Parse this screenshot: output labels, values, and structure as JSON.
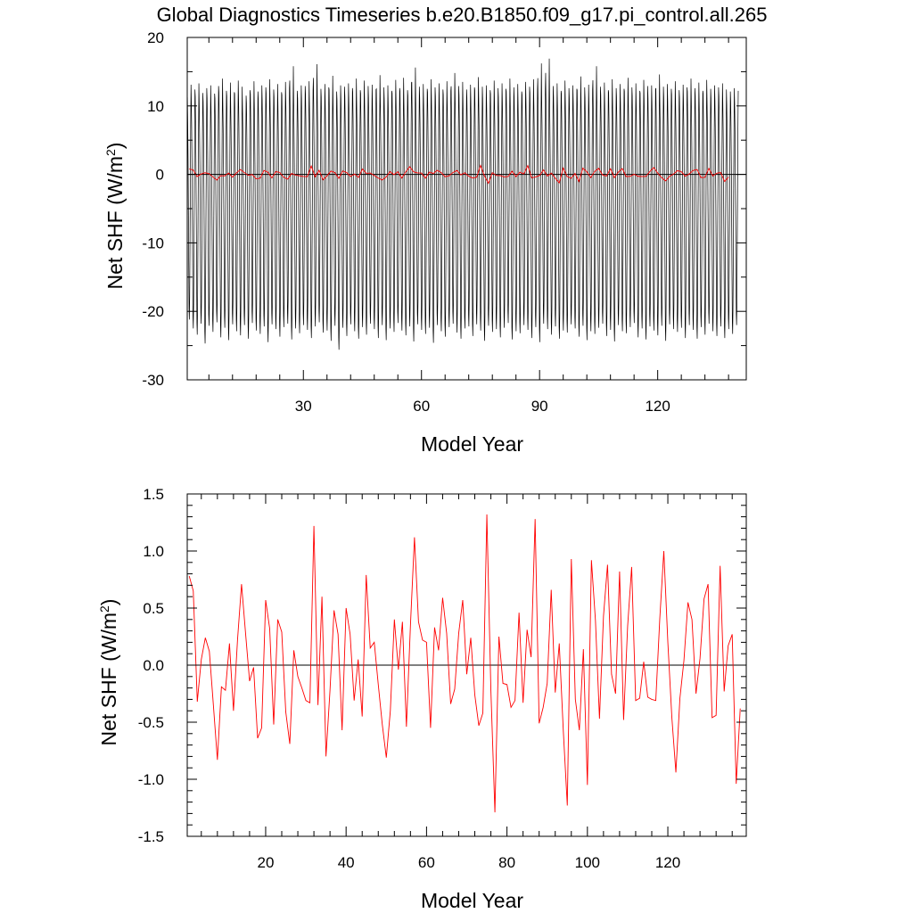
{
  "title": "Global Diagnostics Timeseries b.e20.B1850.f09_g17.pi_control.all.265",
  "colors": {
    "monthly": "#000000",
    "annual": "#ff0000",
    "axes": "#000000"
  },
  "chart_data": [
    {
      "type": "line",
      "xlabel": "Model Year",
      "ylabel": "Net SHF (W/m",
      "ylabel_sup": "2",
      "ylabel_end": ")",
      "xlim": [
        0.5,
        142.5
      ],
      "ylim": [
        -30,
        20
      ],
      "xticks": [
        30,
        60,
        90,
        120
      ],
      "xtick_labels": [
        "30",
        "60",
        "90",
        "120"
      ],
      "yticks": [
        20,
        10,
        0,
        -10,
        -20,
        -30
      ],
      "ytick_labels": [
        "20",
        "10",
        "0",
        "-10",
        "-20",
        "-30"
      ],
      "zero_line": 0,
      "grid": false,
      "series": [
        {
          "resolution": "monthly",
          "color": "#000000",
          "x_start": 1,
          "x_end": 140,
          "monthly_cycle": [
            9.8,
            6.2,
            1.0,
            -6.5,
            -14.0,
            -21.0,
            -22.6,
            -19.2,
            -11.0,
            -2.6,
            5.6,
            11.6
          ],
          "annual_max": [
            13.1,
            12.4,
            13.3,
            11.9,
            12.6,
            13.0,
            11.8,
            12.9,
            14.0,
            12.2,
            13.4,
            12.0,
            13.7,
            12.8,
            11.5,
            12.3,
            13.6,
            12.1,
            13.0,
            12.7,
            13.9,
            12.4,
            13.2,
            12.0,
            13.5,
            12.6,
            15.8,
            12.2,
            13.0,
            12.9,
            13.6,
            12.3,
            16.1,
            12.5,
            13.2,
            12.7,
            14.4,
            12.1,
            13.0,
            12.8,
            13.3,
            12.6,
            14.0,
            12.3,
            13.7,
            12.9,
            13.1,
            12.4,
            14.5,
            12.7,
            13.0,
            12.2,
            13.8,
            12.6,
            14.1,
            12.3,
            13.4,
            15.6,
            12.8,
            13.2,
            12.5,
            13.9,
            12.7,
            13.3,
            12.4,
            13.6,
            12.2,
            14.8,
            12.9,
            13.5,
            12.4,
            13.1,
            12.7,
            14.2,
            12.8,
            13.0,
            12.3,
            13.7,
            12.6,
            13.3,
            12.5,
            14.0,
            12.7,
            13.2,
            12.1,
            13.5,
            12.8,
            13.9,
            12.4,
            16.2,
            12.6,
            16.9,
            12.9,
            13.3,
            12.2,
            13.7,
            12.6,
            13.0,
            12.5,
            14.3,
            12.7,
            13.1,
            12.4,
            15.8,
            12.8,
            13.4,
            12.3,
            13.9,
            12.6,
            13.2,
            12.5,
            14.1,
            12.7,
            13.3,
            12.2,
            13.8,
            12.9,
            13.0,
            12.4,
            14.6,
            12.8,
            13.2,
            12.5,
            13.6,
            12.3,
            13.1,
            12.7,
            14.0,
            12.6,
            13.4,
            12.2,
            13.8,
            12.5,
            13.0,
            12.7,
            13.3,
            12.4,
            12.1,
            12.6,
            12.2
          ],
          "annual_min": [
            -21.2,
            -22.5,
            -23.4,
            -21.8,
            -24.7,
            -22.1,
            -23.0,
            -21.6,
            -23.8,
            -22.4,
            -24.2,
            -21.9,
            -22.9,
            -23.5,
            -22.0,
            -24.0,
            -21.7,
            -22.8,
            -23.3,
            -22.2,
            -24.5,
            -21.9,
            -22.6,
            -23.7,
            -22.3,
            -21.8,
            -24.1,
            -22.5,
            -23.2,
            -22.0,
            -22.7,
            -23.9,
            -22.2,
            -21.6,
            -23.1,
            -22.8,
            -24.3,
            -22.1,
            -25.6,
            -22.4,
            -23.6,
            -21.9,
            -22.9,
            -24.0,
            -22.3,
            -23.4,
            -21.8,
            -22.6,
            -23.9,
            -22.0,
            -24.2,
            -22.5,
            -23.0,
            -21.7,
            -22.8,
            -23.5,
            -22.2,
            -24.4,
            -21.9,
            -22.7,
            -23.3,
            -22.4,
            -24.6,
            -22.0,
            -22.9,
            -23.7,
            -22.3,
            -21.8,
            -23.1,
            -24.0,
            -22.5,
            -22.2,
            -23.6,
            -21.9,
            -22.8,
            -24.3,
            -22.1,
            -23.0,
            -22.6,
            -23.8,
            -22.4,
            -21.7,
            -24.1,
            -22.9,
            -23.2,
            -22.0,
            -22.7,
            -23.9,
            -22.3,
            -24.5,
            -21.8,
            -22.6,
            -23.4,
            -22.2,
            -24.0,
            -22.8,
            -23.1,
            -21.9,
            -22.5,
            -23.7,
            -22.1,
            -24.2,
            -22.9,
            -23.3,
            -22.4,
            -21.8,
            -23.6,
            -22.7,
            -24.4,
            -22.0,
            -22.9,
            -23.2,
            -22.3,
            -21.7,
            -23.8,
            -22.5,
            -24.1,
            -22.2,
            -22.8,
            -23.5,
            -22.1,
            -24.3,
            -21.9,
            -22.6,
            -23.0,
            -22.4,
            -23.9,
            -22.0,
            -22.7,
            -24.0,
            -22.3,
            -23.4,
            -21.8,
            -22.9,
            -23.6,
            -22.2,
            -23.9,
            -22.6,
            -23.3,
            -22.0
          ]
        },
        {
          "resolution": "annual",
          "color": "#ff0000",
          "x_start": 1,
          "x_step": 1,
          "values": [
            0.78,
            0.65,
            -0.32,
            0.05,
            0.24,
            0.12,
            -0.35,
            -0.83,
            -0.19,
            -0.22,
            0.19,
            -0.4,
            0.22,
            0.71,
            0.28,
            -0.14,
            -0.02,
            -0.64,
            -0.55,
            0.57,
            0.32,
            -0.52,
            0.4,
            0.29,
            -0.41,
            -0.69,
            0.13,
            -0.1,
            -0.2,
            -0.31,
            -0.33,
            1.22,
            -0.35,
            0.6,
            -0.8,
            -0.22,
            0.48,
            0.27,
            -0.57,
            0.5,
            0.27,
            -0.31,
            0.05,
            -0.45,
            0.79,
            0.15,
            0.2,
            -0.17,
            -0.52,
            -0.81,
            -0.4,
            0.4,
            -0.04,
            0.38,
            -0.54,
            0.35,
            1.12,
            0.38,
            0.22,
            0.2,
            -0.55,
            0.33,
            0.13,
            0.59,
            0.28,
            -0.34,
            -0.21,
            0.28,
            0.57,
            -0.08,
            0.24,
            -0.26,
            -0.53,
            -0.42,
            1.32,
            -0.22,
            -1.29,
            0.25,
            -0.16,
            -0.17,
            -0.37,
            -0.31,
            0.46,
            -0.33,
            0.31,
            0.07,
            1.28,
            -0.51,
            -0.37,
            -0.16,
            0.66,
            -0.24,
            0.19,
            -0.57,
            -1.23,
            0.93,
            -0.3,
            -0.57,
            0.14,
            -1.05,
            0.92,
            0.39,
            -0.47,
            0.43,
            0.88,
            -0.08,
            -0.25,
            0.82,
            -0.48,
            0.34,
            0.86,
            -0.31,
            -0.29,
            0.03,
            -0.28,
            -0.3,
            -0.31,
            0.41,
            1.0,
            0.2,
            -0.46,
            -0.94,
            -0.29,
            0.04,
            0.55,
            0.4,
            -0.25,
            0.06,
            0.58,
            0.71,
            -0.46,
            -0.44,
            0.87,
            -0.23,
            0.17,
            0.27,
            -1.04,
            -0.38
          ]
        }
      ]
    },
    {
      "type": "line",
      "xlabel": "Model Year",
      "ylabel": "Net SHF (W/m",
      "ylabel_sup": "2",
      "ylabel_end": ")",
      "xlim": [
        0.5,
        139.5
      ],
      "ylim": [
        -1.5,
        1.5
      ],
      "xticks": [
        20,
        40,
        60,
        80,
        100,
        120
      ],
      "xtick_labels": [
        "20",
        "40",
        "60",
        "80",
        "100",
        "120"
      ],
      "yticks": [
        1.5,
        1.0,
        0.5,
        0.0,
        -0.5,
        -1.0,
        -1.5
      ],
      "ytick_labels": [
        "1.5",
        "1.0",
        "0.5",
        "0.0",
        "-0.5",
        "-1.0",
        "-1.5"
      ],
      "zero_line": 0,
      "grid": false,
      "series": [
        {
          "resolution": "annual",
          "color": "#ff0000",
          "x_start": 1,
          "x_step": 1,
          "values": [
            0.78,
            0.65,
            -0.32,
            0.05,
            0.24,
            0.12,
            -0.35,
            -0.83,
            -0.19,
            -0.22,
            0.19,
            -0.4,
            0.22,
            0.71,
            0.28,
            -0.14,
            -0.02,
            -0.64,
            -0.55,
            0.57,
            0.32,
            -0.52,
            0.4,
            0.29,
            -0.41,
            -0.69,
            0.13,
            -0.1,
            -0.2,
            -0.31,
            -0.33,
            1.22,
            -0.35,
            0.6,
            -0.8,
            -0.22,
            0.48,
            0.27,
            -0.57,
            0.5,
            0.27,
            -0.31,
            0.05,
            -0.45,
            0.79,
            0.15,
            0.2,
            -0.17,
            -0.52,
            -0.81,
            -0.4,
            0.4,
            -0.04,
            0.38,
            -0.54,
            0.35,
            1.12,
            0.38,
            0.22,
            0.2,
            -0.55,
            0.33,
            0.13,
            0.59,
            0.28,
            -0.34,
            -0.21,
            0.28,
            0.57,
            -0.08,
            0.24,
            -0.26,
            -0.53,
            -0.42,
            1.32,
            -0.22,
            -1.29,
            0.25,
            -0.16,
            -0.17,
            -0.37,
            -0.31,
            0.46,
            -0.33,
            0.31,
            0.07,
            1.28,
            -0.51,
            -0.37,
            -0.16,
            0.66,
            -0.24,
            0.19,
            -0.57,
            -1.23,
            0.93,
            -0.3,
            -0.57,
            0.14,
            -1.05,
            0.92,
            0.39,
            -0.47,
            0.43,
            0.88,
            -0.08,
            -0.25,
            0.82,
            -0.48,
            0.34,
            0.86,
            -0.31,
            -0.29,
            0.03,
            -0.28,
            -0.3,
            -0.31,
            0.41,
            1.0,
            0.2,
            -0.46,
            -0.94,
            -0.29,
            0.04,
            0.55,
            0.4,
            -0.25,
            0.06,
            0.58,
            0.71,
            -0.46,
            -0.44,
            0.87,
            -0.23,
            0.17,
            0.27,
            -1.04,
            -0.38
          ]
        }
      ]
    }
  ]
}
